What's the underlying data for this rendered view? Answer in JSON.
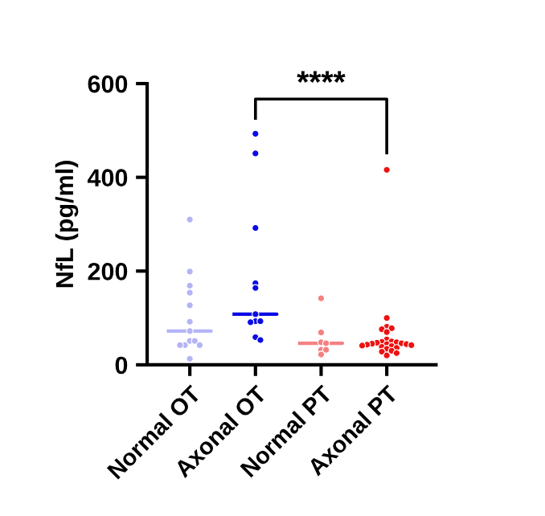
{
  "chart_data": {
    "type": "box",
    "ylabel": "NfL (pg/ml)",
    "categories": [
      "Normal OT",
      "Axonal OT",
      "Normal PT",
      "Axonal PT"
    ],
    "ylim": [
      0,
      600
    ],
    "yticks": [
      0,
      200,
      400,
      600
    ],
    "grid": false,
    "boxes": [
      {
        "low": 72,
        "q1": 72,
        "median": 72,
        "q3": 72,
        "high": 72
      },
      {
        "low": 108,
        "q1": 108,
        "median": 108,
        "q3": 108,
        "high": 108
      },
      {
        "low": 46,
        "q1": 46,
        "median": 46,
        "q3": 46,
        "high": 46
      },
      {
        "low": 44,
        "q1": 44,
        "median": 44,
        "q3": 44,
        "high": 44
      }
    ],
    "colors": [
      "#b4b4f5",
      "#0a0ae6",
      "#f58080",
      "#ee1111"
    ],
    "series": [
      {
        "type": "scatter",
        "color": "#b4b4f5",
        "x": [
          "Normal OT",
          "Normal OT",
          "Normal OT",
          "Normal OT",
          "Normal OT",
          "Normal OT",
          "Normal OT",
          "Normal OT",
          "Normal OT",
          "Normal OT",
          "Normal OT",
          "Normal OT",
          "Normal OT"
        ],
        "values": [
          310,
          199,
          169,
          154,
          127,
          92,
          72,
          51,
          51,
          42,
          42,
          42,
          13
        ]
      },
      {
        "type": "scatter",
        "color": "#0a0ae6",
        "x": [
          "Axonal OT",
          "Axonal OT",
          "Axonal OT",
          "Axonal OT",
          "Axonal OT",
          "Axonal OT",
          "Axonal OT",
          "Axonal OT",
          "Axonal OT",
          "Axonal OT",
          "Axonal OT"
        ],
        "values": [
          493,
          451,
          292,
          174,
          164,
          108,
          93,
          93,
          91,
          59,
          53
        ]
      },
      {
        "type": "scatter",
        "color": "#f58080",
        "x": [
          "Normal PT",
          "Normal PT",
          "Normal PT",
          "Normal PT",
          "Normal PT",
          "Normal PT",
          "Normal PT"
        ],
        "values": [
          142,
          69,
          48,
          46,
          32,
          32,
          22
        ]
      },
      {
        "type": "scatter",
        "color": "#ee1111",
        "x": [
          "Axonal PT",
          "Axonal PT",
          "Axonal PT",
          "Axonal PT",
          "Axonal PT",
          "Axonal PT",
          "Axonal PT",
          "Axonal PT",
          "Axonal PT",
          "Axonal PT",
          "Axonal PT",
          "Axonal PT",
          "Axonal PT",
          "Axonal PT",
          "Axonal PT",
          "Axonal PT",
          "Axonal PT",
          "Axonal PT",
          "Axonal PT",
          "Axonal PT",
          "Axonal PT",
          "Axonal PT",
          "Axonal PT",
          "Axonal PT",
          "Axonal PT",
          "Axonal PT"
        ],
        "values": [
          416,
          100,
          81,
          78,
          76,
          70,
          54,
          50,
          49,
          48,
          47,
          46,
          45,
          44,
          44,
          43,
          42,
          41,
          40,
          38,
          36,
          34,
          30,
          28,
          25,
          20
        ]
      }
    ],
    "marker": "circle",
    "annotations": [
      "****"
    ]
  }
}
